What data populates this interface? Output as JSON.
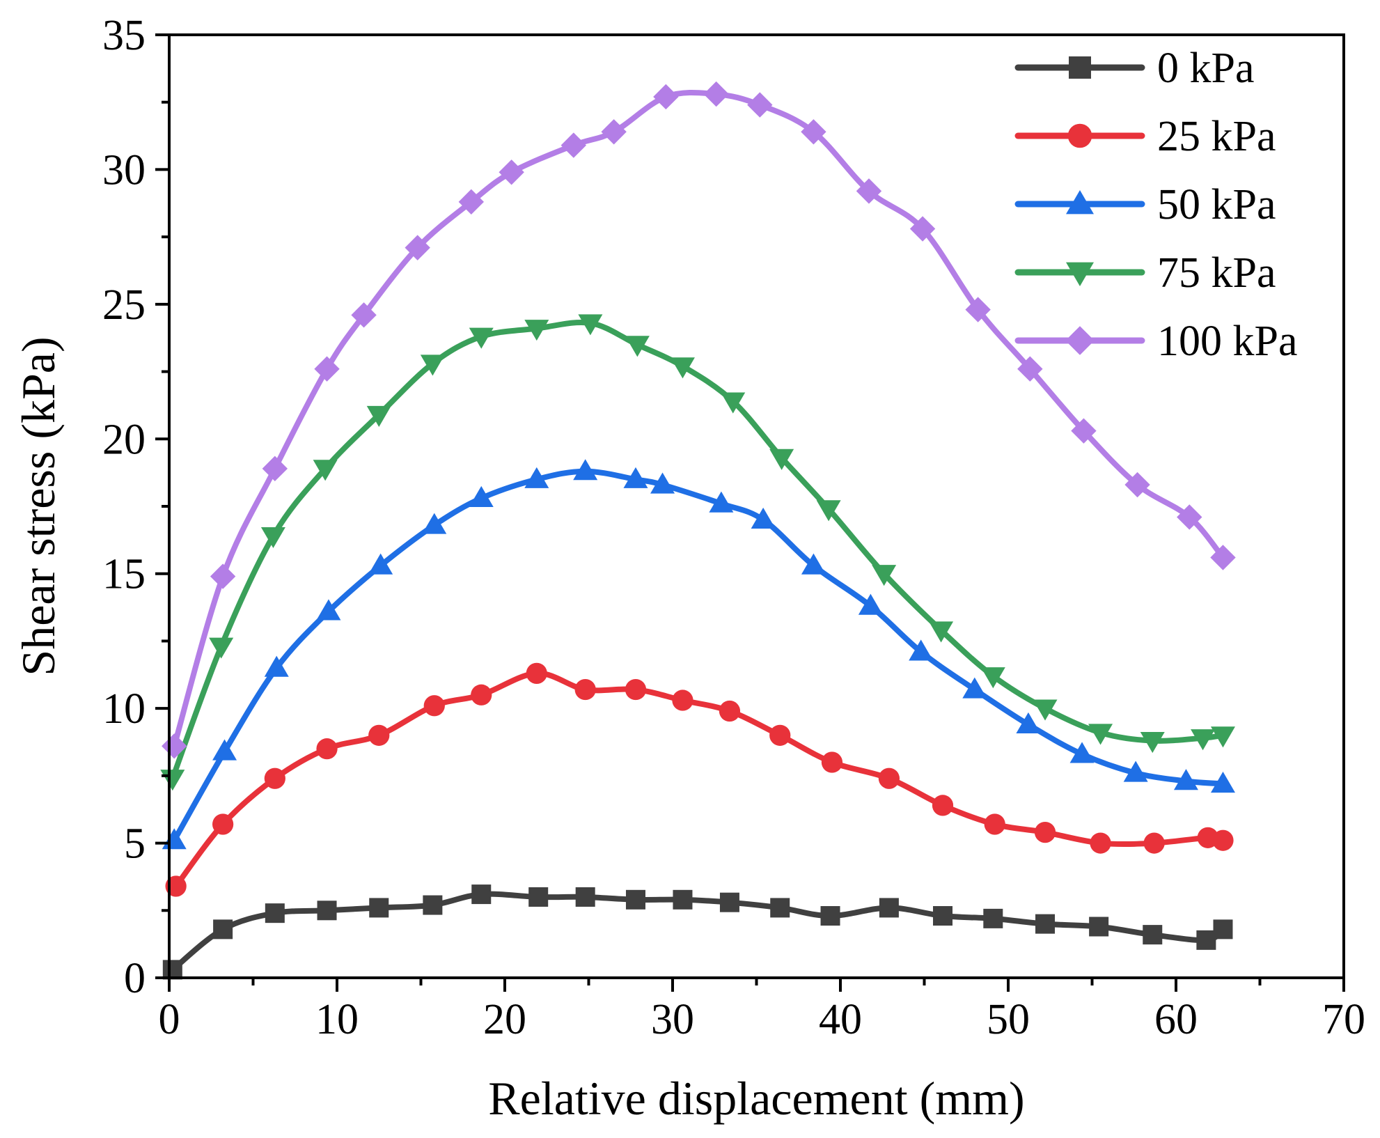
{
  "chart_data": {
    "type": "line",
    "title": "",
    "xlabel": "Relative displacement (mm)",
    "ylabel": "Shear stress (kPa)",
    "xlim": [
      0,
      70
    ],
    "ylim": [
      0,
      35
    ],
    "xticks": [
      "0",
      "10",
      "20",
      "30",
      "40",
      "50",
      "60",
      "70"
    ],
    "yticks": [
      "0",
      "5",
      "10",
      "15",
      "20",
      "25",
      "30",
      "35"
    ],
    "legend_position": "top-right",
    "grid": false,
    "series": [
      {
        "name": "0 kPa",
        "color": "#404040",
        "marker": "square",
        "x": [
          0.2,
          3.2,
          6.3,
          9.4,
          12.5,
          15.7,
          18.6,
          22.0,
          24.8,
          27.8,
          30.6,
          33.4,
          36.4,
          39.4,
          42.9,
          46.1,
          49.1,
          52.2,
          55.4,
          58.6,
          61.8,
          62.8
        ],
        "y": [
          0.3,
          1.8,
          2.4,
          2.5,
          2.6,
          2.7,
          3.1,
          3.0,
          3.0,
          2.9,
          2.9,
          2.8,
          2.6,
          2.3,
          2.6,
          2.3,
          2.2,
          2.0,
          1.9,
          1.6,
          1.4,
          1.8
        ]
      },
      {
        "name": "25 kPa",
        "color": "#e8323a",
        "marker": "circle",
        "x": [
          0.4,
          3.2,
          6.3,
          9.4,
          12.5,
          15.8,
          18.6,
          21.9,
          24.8,
          27.8,
          30.6,
          33.4,
          36.4,
          39.5,
          42.9,
          46.1,
          49.2,
          52.2,
          55.5,
          58.7,
          61.9,
          62.8
        ],
        "y": [
          3.4,
          5.7,
          7.4,
          8.5,
          9.0,
          10.1,
          10.5,
          11.3,
          10.7,
          10.7,
          10.3,
          9.9,
          9.0,
          8.0,
          7.4,
          6.4,
          5.7,
          5.4,
          5.0,
          5.0,
          5.2,
          5.1
        ]
      },
      {
        "name": "50 kPa",
        "color": "#1f6fe5",
        "marker": "triangle-up",
        "x": [
          0.3,
          3.3,
          6.4,
          9.5,
          12.6,
          15.8,
          18.6,
          21.9,
          24.8,
          27.8,
          29.4,
          32.9,
          35.4,
          38.4,
          41.8,
          44.8,
          48.0,
          51.2,
          54.4,
          57.6,
          60.6,
          62.8
        ],
        "y": [
          5.1,
          8.4,
          11.5,
          13.6,
          15.3,
          16.8,
          17.8,
          18.5,
          18.8,
          18.5,
          18.3,
          17.6,
          17.0,
          15.3,
          13.8,
          12.1,
          10.7,
          9.4,
          8.3,
          7.6,
          7.3,
          7.2
        ]
      },
      {
        "name": "75 kPa",
        "color": "#3aa05a",
        "marker": "triangle-down",
        "x": [
          0.2,
          3.1,
          6.2,
          9.3,
          12.5,
          15.7,
          18.6,
          21.9,
          25.1,
          27.9,
          30.6,
          33.6,
          36.5,
          39.3,
          42.6,
          46.0,
          49.1,
          52.2,
          55.5,
          58.6,
          61.6,
          62.8
        ],
        "y": [
          7.4,
          12.3,
          16.4,
          18.9,
          20.9,
          22.8,
          23.8,
          24.1,
          24.3,
          23.5,
          22.7,
          21.4,
          19.3,
          17.4,
          15.0,
          12.9,
          11.2,
          10.0,
          9.1,
          8.8,
          8.9,
          9.0
        ]
      },
      {
        "name": "100 kPa",
        "color": "#b37ee6",
        "marker": "diamond",
        "x": [
          0.3,
          3.2,
          6.3,
          9.4,
          11.6,
          14.8,
          18.0,
          20.4,
          24.1,
          26.5,
          29.6,
          32.6,
          35.2,
          38.4,
          41.7,
          44.9,
          48.2,
          51.3,
          54.5,
          57.7,
          60.8,
          62.8
        ],
        "y": [
          8.6,
          14.9,
          18.9,
          22.6,
          24.6,
          27.1,
          28.8,
          29.9,
          30.9,
          31.4,
          32.7,
          32.8,
          32.4,
          31.4,
          29.2,
          27.8,
          24.8,
          22.6,
          20.3,
          18.3,
          17.1,
          15.6
        ]
      }
    ]
  }
}
